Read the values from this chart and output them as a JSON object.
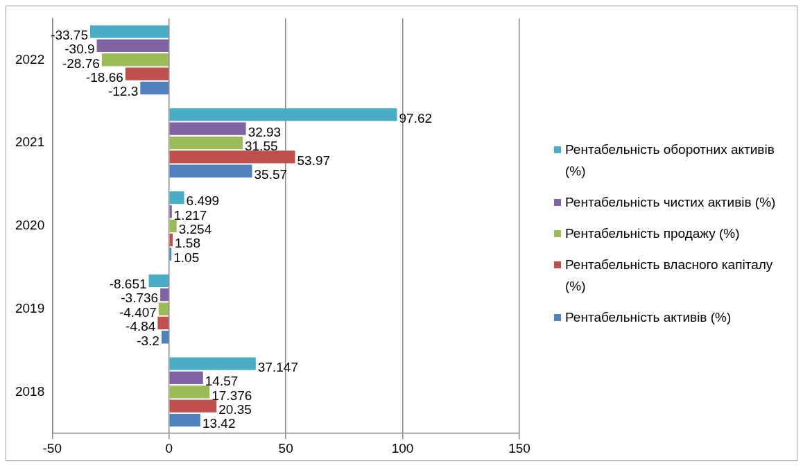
{
  "chart_data": {
    "type": "bar",
    "orientation": "horizontal",
    "categories": [
      "2022",
      "2021",
      "2020",
      "2019",
      "2018"
    ],
    "series": [
      {
        "name": "Рентабельність оборотних активів (%)",
        "color": "#4bacc6",
        "values": [
          -33.75,
          97.62,
          6.499,
          -8.651,
          37.147
        ]
      },
      {
        "name": "Рентабельність чистих активів (%)",
        "color": "#8064a2",
        "values": [
          -30.9,
          32.93,
          1.217,
          -3.736,
          14.57
        ]
      },
      {
        "name": "Рентабельність продажу (%)",
        "color": "#9bbb59",
        "values": [
          -28.76,
          31.55,
          3.254,
          -4.407,
          17.376
        ]
      },
      {
        "name": "Рентабельність власного капіталу (%)",
        "color": "#c0504d",
        "values": [
          -18.66,
          53.97,
          1.58,
          -4.84,
          20.35
        ]
      },
      {
        "name": "Рентабельність активів (%)",
        "color": "#4f81bd",
        "values": [
          -12.3,
          35.57,
          1.05,
          -3.2,
          13.42
        ]
      }
    ],
    "xlim": [
      -50,
      150
    ],
    "xticks": [
      -50,
      0,
      50,
      100,
      150
    ],
    "grid": "x",
    "legend": "right",
    "data_labels": true
  }
}
